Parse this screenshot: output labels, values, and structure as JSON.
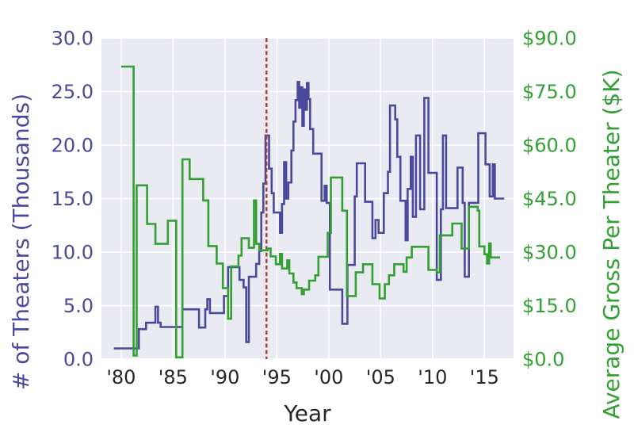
{
  "chart_data": {
    "type": "line",
    "subtype": "dual-axis step (steps-post)",
    "title": "",
    "xlabel": "Year",
    "grid": true,
    "plot_bg_color": "#eaeaf2",
    "grid_color": "#ffffff",
    "x_range": [
      1978.1,
      2017.8
    ],
    "x_ticks": [
      "'80",
      "'85",
      "'90",
      "'95",
      "'00",
      "'05",
      "'10",
      "'15"
    ],
    "x_tick_years": [
      1980,
      1985,
      1990,
      1995,
      2000,
      2005,
      2010,
      2015
    ],
    "x_tick_color": "#262626",
    "left_axis": {
      "label": "# of Theaters (Thousands)",
      "color": "#4a4a9d",
      "range": [
        0,
        30
      ],
      "ticks": [
        "0.0",
        "5.0",
        "10.0",
        "15.0",
        "20.0",
        "25.0",
        "30.0"
      ],
      "tick_values": [
        0,
        5,
        10,
        15,
        20,
        25,
        30
      ]
    },
    "right_axis": {
      "label": "Average Gross Per Theater ($K)",
      "color": "#33a033",
      "range": [
        0,
        90
      ],
      "ticks": [
        "$0.0",
        "$15.0",
        "$30.0",
        "$45.0",
        "$60.0",
        "$75.0",
        "$90.0"
      ],
      "tick_values": [
        0,
        15,
        30,
        45,
        60,
        75,
        90
      ]
    },
    "vline": {
      "x": 1994,
      "style": "dashed",
      "color": "#a94136",
      "width": 2.5
    },
    "series": [
      {
        "name": "theaters-thousands",
        "axis": "left",
        "color": "#4a4a9d",
        "step": "post",
        "width": 2.6,
        "points": [
          [
            1979.3,
            1.0
          ],
          [
            1981.7,
            2.8
          ],
          [
            1982.4,
            3.4
          ],
          [
            1983.3,
            4.9
          ],
          [
            1983.55,
            3.4
          ],
          [
            1983.8,
            3.0
          ],
          [
            1985.9,
            4.65
          ],
          [
            1987.5,
            2.95
          ],
          [
            1988.1,
            4.65
          ],
          [
            1988.3,
            5.6
          ],
          [
            1988.55,
            4.3
          ],
          [
            1989.9,
            5.9
          ],
          [
            1990.3,
            8.6
          ],
          [
            1991.4,
            7.4
          ],
          [
            1991.8,
            6.7
          ],
          [
            1992.05,
            1.6
          ],
          [
            1992.3,
            7.7
          ],
          [
            1993.0,
            8.9
          ],
          [
            1993.3,
            10.1
          ],
          [
            1993.5,
            13.7
          ],
          [
            1993.7,
            16.4
          ],
          [
            1993.9,
            20.9
          ],
          [
            1994.25,
            17.8
          ],
          [
            1994.5,
            15.5
          ],
          [
            1994.7,
            13.7
          ],
          [
            1995.3,
            11.8
          ],
          [
            1995.5,
            14.5
          ],
          [
            1995.7,
            18.4
          ],
          [
            1995.9,
            15.0
          ],
          [
            1996.1,
            16.5
          ],
          [
            1996.4,
            19.5
          ],
          [
            1996.6,
            22.2
          ],
          [
            1996.8,
            24.2
          ],
          [
            1997.0,
            25.9
          ],
          [
            1997.15,
            23.5
          ],
          [
            1997.3,
            25.4
          ],
          [
            1997.45,
            21.8
          ],
          [
            1997.6,
            25.2
          ],
          [
            1997.75,
            23.3
          ],
          [
            1997.9,
            25.8
          ],
          [
            1998.05,
            24.3
          ],
          [
            1998.2,
            21.5
          ],
          [
            1998.5,
            19.2
          ],
          [
            1999.3,
            14.8
          ],
          [
            1999.6,
            16.2
          ],
          [
            1999.8,
            14.6
          ],
          [
            2000.1,
            6.5
          ],
          [
            2001.3,
            3.3
          ],
          [
            2001.8,
            8.8
          ],
          [
            2002.5,
            15.2
          ],
          [
            2002.7,
            18.3
          ],
          [
            2003.5,
            14.7
          ],
          [
            2004.2,
            11.3
          ],
          [
            2004.5,
            13.0
          ],
          [
            2004.8,
            11.8
          ],
          [
            2005.3,
            15.5
          ],
          [
            2005.7,
            17.5
          ],
          [
            2005.9,
            23.7
          ],
          [
            2006.4,
            22.4
          ],
          [
            2006.6,
            18.9
          ],
          [
            2006.9,
            14.8
          ],
          [
            2007.4,
            11.1
          ],
          [
            2007.6,
            15.9
          ],
          [
            2007.9,
            18.9
          ],
          [
            2008.1,
            13.3
          ],
          [
            2008.4,
            20.9
          ],
          [
            2008.8,
            14.0
          ],
          [
            2009.2,
            24.4
          ],
          [
            2009.6,
            17.4
          ],
          [
            2010.4,
            7.4
          ],
          [
            2010.8,
            14.0
          ],
          [
            2011.0,
            20.9
          ],
          [
            2011.3,
            14.1
          ],
          [
            2012.4,
            17.9
          ],
          [
            2012.9,
            14.6
          ],
          [
            2013.1,
            7.7
          ],
          [
            2013.5,
            14.6
          ],
          [
            2014.4,
            21.1
          ],
          [
            2015.1,
            18.2
          ],
          [
            2015.5,
            15.2
          ],
          [
            2015.8,
            18.2
          ],
          [
            2016.0,
            15.0
          ],
          [
            2016.9,
            15.0
          ]
        ]
      },
      {
        "name": "avg-gross-per-theater-k",
        "axis": "right",
        "color": "#33a033",
        "step": "post",
        "width": 2.6,
        "points": [
          [
            1980.0,
            82.0
          ],
          [
            1981.2,
            1.0
          ],
          [
            1981.5,
            48.7
          ],
          [
            1982.5,
            37.9
          ],
          [
            1983.3,
            32.3
          ],
          [
            1984.5,
            38.8
          ],
          [
            1985.3,
            0.5
          ],
          [
            1985.9,
            56.0
          ],
          [
            1986.6,
            50.5
          ],
          [
            1987.9,
            44.5
          ],
          [
            1988.4,
            31.7
          ],
          [
            1989.2,
            26.8
          ],
          [
            1989.8,
            19.9
          ],
          [
            1990.3,
            11.3
          ],
          [
            1990.6,
            26.0
          ],
          [
            1991.3,
            29.0
          ],
          [
            1991.6,
            33.9
          ],
          [
            1992.3,
            31.2
          ],
          [
            1992.8,
            44.5
          ],
          [
            1993.0,
            32.3
          ],
          [
            1993.3,
            30.5
          ],
          [
            1994.1,
            31.0
          ],
          [
            1994.4,
            28.8
          ],
          [
            1994.9,
            26.6
          ],
          [
            1995.3,
            29.5
          ],
          [
            1995.5,
            25.4
          ],
          [
            1996.0,
            27.7
          ],
          [
            1996.2,
            24.0
          ],
          [
            1996.6,
            21.5
          ],
          [
            1996.9,
            19.9
          ],
          [
            1997.4,
            18.2
          ],
          [
            1997.6,
            19.5
          ],
          [
            1998.1,
            22.0
          ],
          [
            1998.7,
            23.5
          ],
          [
            1999.0,
            28.7
          ],
          [
            1999.9,
            35.4
          ],
          [
            2000.2,
            50.9
          ],
          [
            2001.3,
            41.6
          ],
          [
            2001.75,
            17.7
          ],
          [
            2002.6,
            24.3
          ],
          [
            2003.3,
            26.6
          ],
          [
            2004.2,
            21.0
          ],
          [
            2004.9,
            17.0
          ],
          [
            2005.4,
            21.0
          ],
          [
            2005.8,
            23.5
          ],
          [
            2006.3,
            26.6
          ],
          [
            2007.2,
            24.5
          ],
          [
            2007.5,
            28.5
          ],
          [
            2008.0,
            31.5
          ],
          [
            2009.6,
            25.0
          ],
          [
            2010.4,
            24.3
          ],
          [
            2010.7,
            34.7
          ],
          [
            2011.9,
            38.0
          ],
          [
            2012.8,
            31.0
          ],
          [
            2013.5,
            42.7
          ],
          [
            2014.35,
            41.6
          ],
          [
            2014.5,
            31.6
          ],
          [
            2015.0,
            29.4
          ],
          [
            2015.25,
            26.8
          ],
          [
            2015.45,
            32.4
          ],
          [
            2015.6,
            28.5
          ],
          [
            2016.5,
            28.5
          ]
        ]
      }
    ]
  }
}
